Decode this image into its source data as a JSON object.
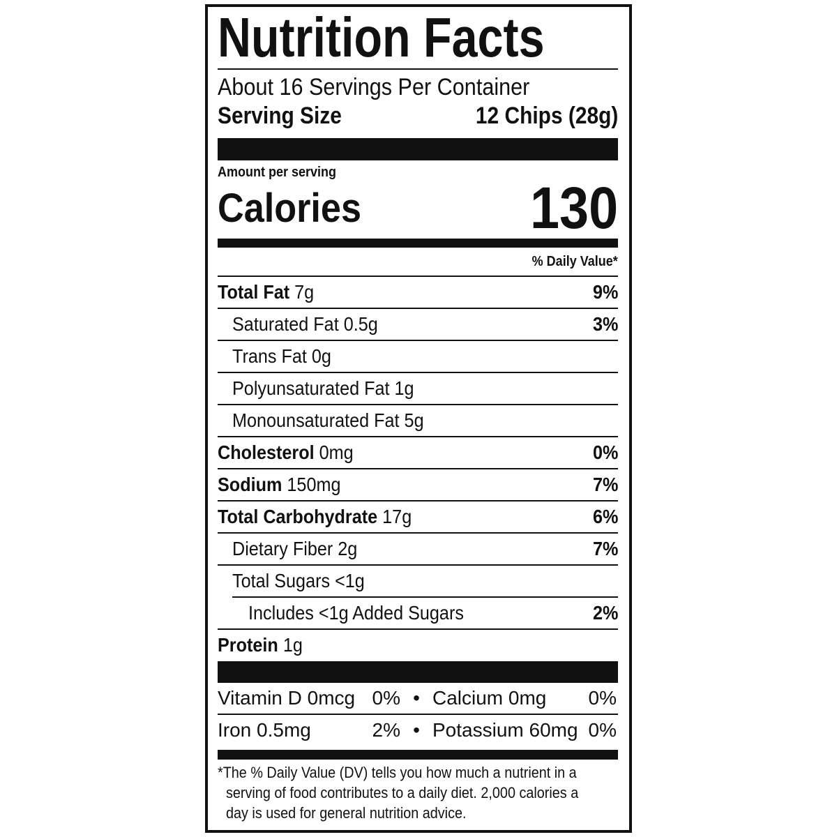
{
  "title": "Nutrition Facts",
  "servings_per_container": "About 16 Servings Per Container",
  "serving_size": {
    "label": "Serving Size",
    "value": "12 Chips (28g)"
  },
  "amount_per_serving": "Amount per serving",
  "calories": {
    "label": "Calories",
    "value": "130"
  },
  "daily_value_header": "% Daily Value*",
  "nutrients": [
    {
      "name": "Total Fat",
      "amount": "7g",
      "dv": "9%",
      "bold": true,
      "indent": 0
    },
    {
      "name": "Saturated Fat",
      "amount": "0.5g",
      "dv": "3%",
      "bold": false,
      "indent": 1
    },
    {
      "name": "Trans Fat",
      "amount": "0g",
      "dv": "",
      "bold": false,
      "indent": 1
    },
    {
      "name": "Polyunsaturated Fat",
      "amount": "1g",
      "dv": "",
      "bold": false,
      "indent": 1
    },
    {
      "name": "Monounsaturated Fat",
      "amount": "5g",
      "dv": "",
      "bold": false,
      "indent": 1
    },
    {
      "name": "Cholesterol",
      "amount": "0mg",
      "dv": "0%",
      "bold": true,
      "indent": 0
    },
    {
      "name": "Sodium",
      "amount": "150mg",
      "dv": "7%",
      "bold": true,
      "indent": 0
    },
    {
      "name": "Total Carbohydrate",
      "amount": "17g",
      "dv": "6%",
      "bold": true,
      "indent": 0
    },
    {
      "name": "Dietary Fiber",
      "amount": "2g",
      "dv": "7%",
      "bold": false,
      "indent": 1
    },
    {
      "name": "Total Sugars",
      "amount": "<1g",
      "dv": "",
      "bold": false,
      "indent": 1
    },
    {
      "name": "Includes <1g Added Sugars",
      "amount": "",
      "dv": "2%",
      "bold": false,
      "indent": 2
    },
    {
      "name": "Protein",
      "amount": "1g",
      "dv": "",
      "bold": true,
      "indent": 0
    }
  ],
  "vitamins": [
    {
      "left": "Vitamin D 0mcg",
      "left_dv": "0%",
      "right": "Calcium 0mg",
      "right_dv": "0%"
    },
    {
      "left": "Iron 0.5mg",
      "left_dv": "2%",
      "right": "Potassium 60mg",
      "right_dv": "0%"
    }
  ],
  "bullet": "•",
  "footnote": {
    "line1": "*The % Daily Value (DV) tells you how much a nutrient in a",
    "line2": "serving of food contributes to a daily diet. 2,000 calories a",
    "line3": "day is used for general nutrition advice."
  }
}
